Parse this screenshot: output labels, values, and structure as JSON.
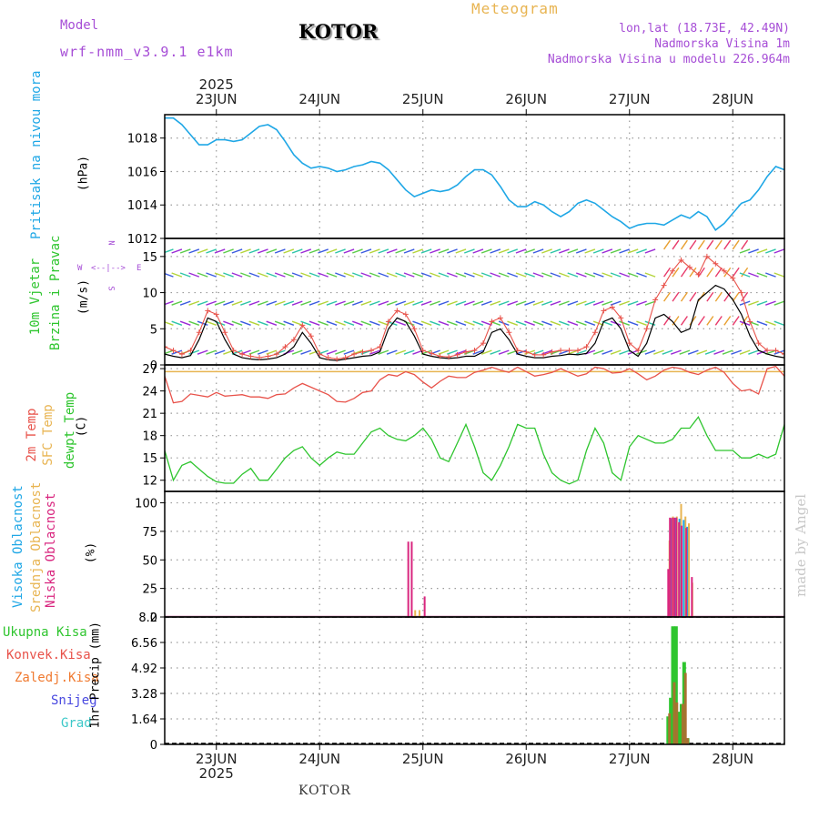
{
  "header": {
    "model_label": "Model",
    "model_name": "wrf-nmm_v3.9.1 e1km",
    "station": "KOTOR",
    "chart_title": "Meteogram",
    "coords": "lon,lat (18.73E, 42.49N)",
    "elevation": "Nadmorska Visina 1m",
    "model_elevation": "Nadmorska Visina u modelu 226.964m"
  },
  "timeline": {
    "year_top": "2025",
    "year_bottom": "2025",
    "days": [
      "23JUN",
      "24JUN",
      "25JUN",
      "26JUN",
      "27JUN",
      "28JUN"
    ]
  },
  "footer": {
    "station": "KOTOR",
    "credit": "made by Angel"
  },
  "panels": {
    "pressure": {
      "label": "Pritisak na nivou mora",
      "unit": "(hPa)"
    },
    "wind": {
      "label1": "10m Vjetar",
      "label2": "Brzina i Pravac",
      "unit": "(m/s)",
      "compass": {
        "n": "N",
        "s": "S",
        "e": "E",
        "w": "W"
      }
    },
    "temp": {
      "label1": "2m Temp",
      "label2": "SFC Temp",
      "label3": "dewpt Temp",
      "unit": "(C)"
    },
    "cloud": {
      "label1": "Visoka Oblacnost",
      "label2": "Srednja Oblacnost",
      "label3": "Niska Oblacnost",
      "unit": "(%)"
    },
    "precip": {
      "label_total": "Ukupna Kisa",
      "label_conv": "Konvek.Kisa",
      "label_frz": "Zaledj.Kisa",
      "label_snow": "Snijeg",
      "label_grad": "Grad",
      "unit": "1hr Precip (mm)"
    }
  },
  "colors": {
    "pressure": "#1fa7e6",
    "temp2m": "#e8524a",
    "sfc": "#e8b451",
    "dewpt": "#2ec52e",
    "high_cloud": "#1fa7e6",
    "mid_cloud": "#e8b451",
    "low_cloud": "#d9267f",
    "total_rain": "#2ec52e",
    "conv_rain": "#e8524a",
    "frz_rain": "#f07a30",
    "snow": "#4848e0",
    "grad": "#3cc8c8",
    "wind_speed": "#000000",
    "gust": "#e8524a"
  },
  "chart_data": [
    {
      "type": "line",
      "name": "pressure",
      "ylim": [
        1012,
        1019.4
      ],
      "yticks": [
        1012,
        1014,
        1016,
        1018
      ],
      "x_hours": [
        0,
        2,
        4,
        6,
        8,
        10,
        12,
        14,
        16,
        18,
        20,
        22,
        24,
        26,
        28,
        30,
        32,
        34,
        36,
        38,
        40,
        42,
        44,
        46,
        48,
        50,
        52,
        54,
        56,
        58,
        60,
        62,
        64,
        66,
        68,
        70,
        72,
        74,
        76,
        78,
        80,
        82,
        84,
        86,
        88,
        90,
        92,
        94,
        96,
        98,
        100,
        102,
        104,
        106,
        108,
        110,
        112,
        114,
        116,
        118,
        120,
        122,
        124,
        126,
        128,
        130,
        132,
        134,
        136,
        138,
        140,
        142,
        144
      ],
      "values": [
        1019.2,
        1019.2,
        1018.8,
        1018.2,
        1017.6,
        1017.6,
        1017.9,
        1017.9,
        1017.8,
        1017.9,
        1018.3,
        1018.7,
        1018.8,
        1018.5,
        1017.8,
        1017.0,
        1016.5,
        1016.2,
        1016.3,
        1016.2,
        1016.0,
        1016.1,
        1016.3,
        1016.4,
        1016.6,
        1016.5,
        1016.1,
        1015.5,
        1014.9,
        1014.5,
        1014.7,
        1014.9,
        1014.8,
        1014.9,
        1015.2,
        1015.7,
        1016.1,
        1016.1,
        1015.8,
        1015.1,
        1014.3,
        1013.9,
        1013.9,
        1014.2,
        1014.0,
        1013.6,
        1013.3,
        1013.6,
        1014.1,
        1014.3,
        1014.1,
        1013.7,
        1013.3,
        1013.0,
        1012.6,
        1012.8,
        1012.9,
        1012.9,
        1012.8,
        1013.1,
        1013.4,
        1013.2,
        1013.6,
        1013.3,
        1012.5,
        1012.9,
        1013.5,
        1014.1,
        1014.3,
        1014.9,
        1015.7,
        1016.3,
        1016.1
      ]
    },
    {
      "type": "line",
      "name": "wind",
      "ylim": [
        0,
        17.5
      ],
      "yticks": [
        0,
        5,
        10,
        15
      ],
      "x_hours": [
        0,
        2,
        4,
        6,
        8,
        10,
        12,
        14,
        16,
        18,
        20,
        22,
        24,
        26,
        28,
        30,
        32,
        34,
        36,
        38,
        40,
        42,
        44,
        46,
        48,
        50,
        52,
        54,
        56,
        58,
        60,
        62,
        64,
        66,
        68,
        70,
        72,
        74,
        76,
        78,
        80,
        82,
        84,
        86,
        88,
        90,
        92,
        94,
        96,
        98,
        100,
        102,
        104,
        106,
        108,
        110,
        112,
        114,
        116,
        118,
        120,
        122,
        124,
        126,
        128,
        130,
        132,
        134,
        136,
        138,
        140,
        142,
        144
      ],
      "speed": [
        1.5,
        1.2,
        1.0,
        1.3,
        3.5,
        6.5,
        6.0,
        3.5,
        1.5,
        1.0,
        0.8,
        0.7,
        0.8,
        1.0,
        1.5,
        2.5,
        4.5,
        3.0,
        1.0,
        0.7,
        0.6,
        0.8,
        1.0,
        1.2,
        1.3,
        1.8,
        5.0,
        6.5,
        6.0,
        4.0,
        1.5,
        1.2,
        1.0,
        0.9,
        1.0,
        1.2,
        1.2,
        1.8,
        4.5,
        5.0,
        3.5,
        1.5,
        1.2,
        1.0,
        1.0,
        1.2,
        1.3,
        1.5,
        1.4,
        1.6,
        3.0,
        6.0,
        6.5,
        5.0,
        2.0,
        1.2,
        3.0,
        6.5,
        7.0,
        6.0,
        4.5,
        5.0,
        9.0,
        10.0,
        11.0,
        10.5,
        9.0,
        7.0,
        4.0,
        2.0,
        1.5,
        1.2,
        1.0
      ],
      "gust": [
        2.5,
        2.0,
        1.5,
        2.0,
        4.5,
        7.5,
        7.0,
        4.5,
        2.0,
        1.5,
        1.2,
        1.0,
        1.2,
        1.5,
        2.5,
        3.5,
        5.5,
        4.0,
        1.5,
        1.0,
        0.8,
        1.0,
        1.5,
        1.8,
        2.0,
        2.5,
        6.0,
        7.5,
        7.0,
        5.0,
        2.0,
        1.6,
        1.2,
        1.1,
        1.4,
        1.8,
        2.0,
        3.0,
        6.0,
        6.5,
        4.5,
        2.0,
        1.8,
        1.4,
        1.4,
        1.8,
        2.0,
        2.0,
        2.0,
        2.5,
        4.5,
        7.5,
        8.0,
        6.5,
        3.0,
        2.0,
        5.0,
        9.0,
        11.0,
        13.0,
        14.5,
        13.5,
        12.5,
        15.0,
        14.0,
        13.0,
        12.0,
        10.0,
        6.0,
        3.0,
        2.0,
        2.0,
        1.5
      ]
    },
    {
      "type": "line",
      "name": "temperature",
      "ylim": [
        10.5,
        27.5
      ],
      "yticks": [
        12,
        15,
        18,
        21,
        24,
        27
      ],
      "sfc_temp": 26.6,
      "x_hours": [
        0,
        2,
        4,
        6,
        8,
        10,
        12,
        14,
        16,
        18,
        20,
        22,
        24,
        26,
        28,
        30,
        32,
        34,
        36,
        38,
        40,
        42,
        44,
        46,
        48,
        50,
        52,
        54,
        56,
        58,
        60,
        62,
        64,
        66,
        68,
        70,
        72,
        74,
        76,
        78,
        80,
        82,
        84,
        86,
        88,
        90,
        92,
        94,
        96,
        98,
        100,
        102,
        104,
        106,
        108,
        110,
        112,
        114,
        116,
        118,
        120,
        122,
        124,
        126,
        128,
        130,
        132,
        134,
        136,
        138,
        140,
        142,
        144
      ],
      "temp2m": [
        26.0,
        22.4,
        22.6,
        23.6,
        23.4,
        23.2,
        23.8,
        23.3,
        23.4,
        23.5,
        23.2,
        23.2,
        23.0,
        23.5,
        23.6,
        24.4,
        25.0,
        24.5,
        24.0,
        23.5,
        22.6,
        22.5,
        23.0,
        23.8,
        24.0,
        25.5,
        26.2,
        26.0,
        26.6,
        26.2,
        25.2,
        24.4,
        25.3,
        26.0,
        25.8,
        25.8,
        26.5,
        26.8,
        27.2,
        26.8,
        26.5,
        27.2,
        26.6,
        26.0,
        26.2,
        26.5,
        27.0,
        26.5,
        26.0,
        26.3,
        27.2,
        27.0,
        26.4,
        26.5,
        27.0,
        26.3,
        25.5,
        26.0,
        26.8,
        27.2,
        27.0,
        26.5,
        26.2,
        26.8,
        27.2,
        26.5,
        25.0,
        24.0,
        24.2,
        23.6,
        27.0,
        27.3,
        26.0
      ],
      "dewpt": [
        16.0,
        12.0,
        14.0,
        14.5,
        13.5,
        12.5,
        11.8,
        11.6,
        11.6,
        12.8,
        13.6,
        12.0,
        12.0,
        13.5,
        15.0,
        16.0,
        16.5,
        15.0,
        14.0,
        15.0,
        15.8,
        15.5,
        15.5,
        17.0,
        18.5,
        19.0,
        18.0,
        17.5,
        17.3,
        18.0,
        19.0,
        17.5,
        15.0,
        14.5,
        17.0,
        19.5,
        16.5,
        13.0,
        12.0,
        14.0,
        16.5,
        19.5,
        19.0,
        19.0,
        15.5,
        13.0,
        12.0,
        11.5,
        12.0,
        16.0,
        19.0,
        17.0,
        13.0,
        12.0,
        16.5,
        18.0,
        17.5,
        17.0,
        17.0,
        17.5,
        19.0,
        19.0,
        20.5,
        18.0,
        16.0,
        16.0,
        16.0,
        15.0,
        15.0,
        15.5,
        15.0,
        15.5,
        19.5
      ]
    },
    {
      "type": "bar",
      "name": "cloud_cover",
      "ylim": [
        0,
        110
      ],
      "yticks": [
        0,
        25,
        50,
        75,
        100
      ],
      "low": [
        {
          "h": 56.6,
          "v": 66
        },
        {
          "h": 57.4,
          "v": 66
        },
        {
          "h": 60.4,
          "v": 18
        },
        {
          "h": 117.0,
          "v": 42
        },
        {
          "h": 117.4,
          "v": 87
        },
        {
          "h": 117.9,
          "v": 87
        },
        {
          "h": 118.4,
          "v": 87
        },
        {
          "h": 118.9,
          "v": 87
        },
        {
          "h": 119.5,
          "v": 83
        },
        {
          "h": 120.1,
          "v": 80
        },
        {
          "h": 121.2,
          "v": 78
        },
        {
          "h": 122.5,
          "v": 35
        }
      ],
      "mid": [
        {
          "h": 58.2,
          "v": 6
        },
        {
          "h": 59.2,
          "v": 6
        },
        {
          "h": 117.3,
          "v": 67
        },
        {
          "h": 118.1,
          "v": 88
        },
        {
          "h": 119.0,
          "v": 88
        },
        {
          "h": 120.0,
          "v": 99
        },
        {
          "h": 121.0,
          "v": 88
        },
        {
          "h": 121.8,
          "v": 82
        },
        {
          "h": 122.6,
          "v": 30
        }
      ],
      "high": [
        {
          "h": 117.5,
          "v": 86
        },
        {
          "h": 118.6,
          "v": 87
        },
        {
          "h": 119.6,
          "v": 86
        },
        {
          "h": 120.6,
          "v": 85
        },
        {
          "h": 121.4,
          "v": 79
        }
      ]
    },
    {
      "type": "bar",
      "name": "precipitation",
      "ylim": [
        0,
        8.2
      ],
      "yticks": [
        0,
        1.64,
        3.28,
        4.92,
        6.56,
        8.2
      ],
      "total": [
        {
          "h": 117.0,
          "v": 1.8
        },
        {
          "h": 117.6,
          "v": 3.0
        },
        {
          "h": 118.1,
          "v": 7.6
        },
        {
          "h": 118.8,
          "v": 7.6
        },
        {
          "h": 119.4,
          "v": 2.1
        },
        {
          "h": 120.1,
          "v": 2.6
        },
        {
          "h": 120.7,
          "v": 5.3
        },
        {
          "h": 121.5,
          "v": 0.4
        }
      ],
      "conv": [
        {
          "h": 117.3,
          "v": 2.0
        },
        {
          "h": 118.4,
          "v": 4.0
        },
        {
          "h": 119.0,
          "v": 2.7
        },
        {
          "h": 120.4,
          "v": 2.6
        },
        {
          "h": 121.0,
          "v": 4.6
        },
        {
          "h": 121.5,
          "v": 0.4
        }
      ]
    }
  ]
}
